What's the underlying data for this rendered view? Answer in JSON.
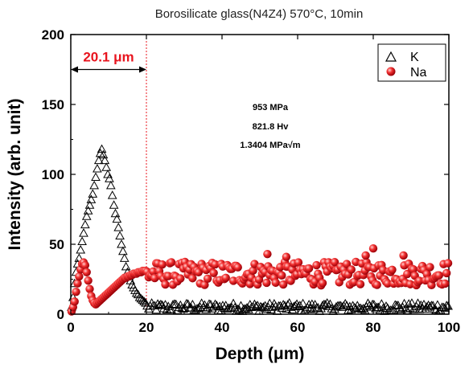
{
  "chart_data": {
    "type": "scatter",
    "title": "Borosilicate glass(N4Z4) 570°C, 10min",
    "xlabel": "Depth (μm)",
    "ylabel": "Intensity (arb. unit)",
    "xlim": [
      0,
      100
    ],
    "ylim": [
      0,
      200
    ],
    "x_ticks": [
      0,
      20,
      40,
      60,
      80,
      100
    ],
    "y_ticks": [
      0,
      50,
      100,
      150,
      200
    ],
    "grid": false,
    "legend_position": "top-right",
    "series": [
      {
        "name": "K",
        "marker": "open-triangle",
        "color": "#000000",
        "points": [
          [
            0.2,
            5
          ],
          [
            0.6,
            12
          ],
          [
            1.0,
            22
          ],
          [
            1.4,
            30
          ],
          [
            1.8,
            36
          ],
          [
            2.2,
            40
          ],
          [
            2.6,
            46
          ],
          [
            3.0,
            52
          ],
          [
            3.4,
            58
          ],
          [
            3.8,
            64
          ],
          [
            4.2,
            70
          ],
          [
            4.6,
            74
          ],
          [
            5.0,
            78
          ],
          [
            5.4,
            82
          ],
          [
            5.8,
            86
          ],
          [
            6.2,
            92
          ],
          [
            6.6,
            98
          ],
          [
            7.0,
            104
          ],
          [
            7.4,
            110
          ],
          [
            7.8,
            115
          ],
          [
            8.2,
            118
          ],
          [
            8.6,
            114
          ],
          [
            9.0,
            110
          ],
          [
            9.4,
            105
          ],
          [
            9.8,
            100
          ],
          [
            10.2,
            97
          ],
          [
            10.6,
            92
          ],
          [
            11.0,
            85
          ],
          [
            11.4,
            78
          ],
          [
            11.8,
            72
          ],
          [
            12.2,
            68
          ],
          [
            12.6,
            62
          ],
          [
            13.0,
            56
          ],
          [
            13.4,
            50
          ],
          [
            13.8,
            45
          ],
          [
            14.2,
            40
          ],
          [
            14.6,
            34
          ],
          [
            15.0,
            30
          ],
          [
            15.4,
            27
          ],
          [
            15.8,
            24
          ],
          [
            16.2,
            21
          ],
          [
            16.6,
            19
          ],
          [
            17.0,
            17
          ],
          [
            17.4,
            15
          ],
          [
            17.8,
            14
          ],
          [
            18.2,
            12
          ],
          [
            18.6,
            11
          ],
          [
            19.0,
            10
          ],
          [
            19.4,
            9
          ],
          [
            19.8,
            8
          ]
        ],
        "tail": {
          "x_range": [
            20,
            100
          ],
          "typical": 5,
          "min": 2,
          "max": 9
        }
      },
      {
        "name": "Na",
        "marker": "filled-sphere",
        "color": "#e8141e",
        "points": [
          [
            0.2,
            2
          ],
          [
            0.6,
            5
          ],
          [
            1.0,
            9
          ],
          [
            1.4,
            16
          ],
          [
            1.8,
            22
          ],
          [
            2.2,
            27
          ],
          [
            2.6,
            32
          ],
          [
            3.0,
            36
          ],
          [
            3.4,
            37
          ],
          [
            3.8,
            35
          ],
          [
            4.2,
            30
          ],
          [
            4.6,
            24
          ],
          [
            5.0,
            18
          ],
          [
            5.4,
            13
          ],
          [
            5.8,
            10
          ],
          [
            6.2,
            8
          ],
          [
            6.6,
            7
          ],
          [
            7.0,
            8
          ],
          [
            7.4,
            9
          ],
          [
            7.8,
            10
          ],
          [
            8.2,
            11
          ],
          [
            8.6,
            12
          ],
          [
            9.0,
            13
          ],
          [
            9.4,
            14
          ],
          [
            9.8,
            15
          ],
          [
            10.2,
            16
          ],
          [
            10.6,
            17
          ],
          [
            11.0,
            18
          ],
          [
            11.4,
            19
          ],
          [
            11.8,
            20
          ],
          [
            12.2,
            21
          ],
          [
            12.6,
            22
          ],
          [
            13.0,
            23
          ],
          [
            13.4,
            24
          ],
          [
            13.8,
            25
          ],
          [
            14.2,
            26
          ],
          [
            14.6,
            26
          ],
          [
            15.0,
            27
          ],
          [
            15.4,
            27
          ],
          [
            15.8,
            28
          ],
          [
            16.2,
            28
          ],
          [
            16.6,
            29
          ],
          [
            17.0,
            29
          ],
          [
            17.4,
            29
          ],
          [
            17.8,
            30
          ],
          [
            18.2,
            30
          ],
          [
            18.6,
            30
          ],
          [
            19.0,
            31
          ],
          [
            19.4,
            31
          ],
          [
            19.8,
            31
          ]
        ],
        "tail": {
          "x_range": [
            20,
            100
          ],
          "typical": 29,
          "min": 18,
          "max": 38
        },
        "outliers": [
          [
            52,
            43
          ],
          [
            80,
            47
          ],
          [
            78,
            42
          ],
          [
            88,
            42
          ],
          [
            57,
            41
          ]
        ]
      }
    ],
    "annotations": {
      "marker_line_x": 20,
      "arrow_label": "20.1 μm",
      "arrow_y": 175,
      "stats": [
        "953 MPa",
        "821.8 Hv",
        "1.3404 MPa√m"
      ]
    }
  },
  "colors": {
    "accent_red": "#e8141e",
    "black": "#000000"
  }
}
